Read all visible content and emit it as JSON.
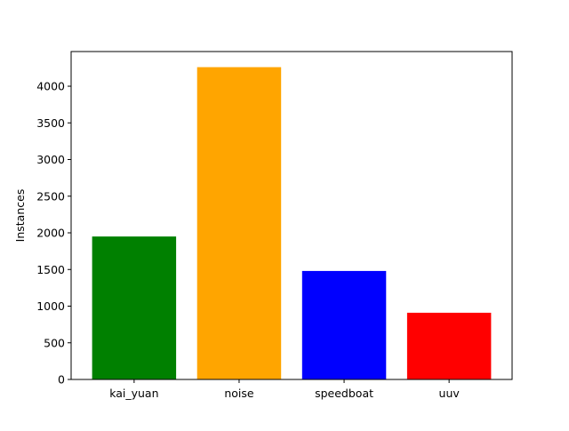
{
  "chart_data": {
    "type": "bar",
    "categories": [
      "kai_yuan",
      "noise",
      "speedboat",
      "uuv"
    ],
    "values": [
      1950,
      4260,
      1480,
      910
    ],
    "colors": [
      "#008000",
      "#ffa500",
      "#0000ff",
      "#ff0000"
    ],
    "title": "",
    "xlabel": "",
    "ylabel": "Instances",
    "ylim": [
      0,
      4473
    ],
    "yticks": [
      0,
      500,
      1000,
      1500,
      2000,
      2500,
      3000,
      3500,
      4000
    ],
    "grid": false,
    "legend": "none"
  }
}
